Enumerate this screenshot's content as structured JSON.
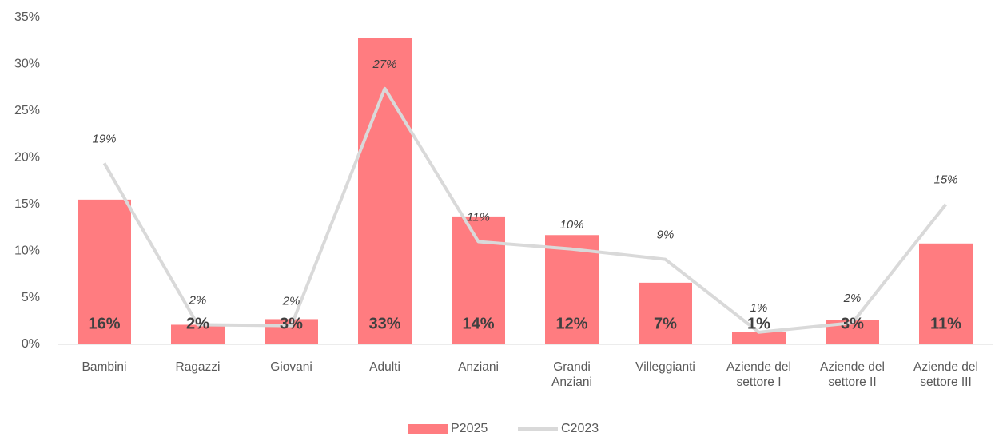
{
  "chart_data": {
    "type": "bar_line",
    "categories": [
      "Bambini",
      "Ragazzi",
      "Giovani",
      "Adulti",
      "Anziani",
      "Grandi Anziani",
      "Villeggianti",
      "Aziende del settore I",
      "Aziende del settore II",
      "Aziende del settore III"
    ],
    "series": [
      {
        "name": "P2025",
        "type": "bar",
        "color": "#ff7c80",
        "values": [
          15.5,
          2.1,
          2.7,
          32.8,
          13.7,
          11.7,
          6.6,
          1.3,
          2.6,
          10.8
        ],
        "value_labels": [
          "16%",
          "2%",
          "3%",
          "33%",
          "14%",
          "12%",
          "7%",
          "1%",
          "3%",
          "11%"
        ]
      },
      {
        "name": "C2023",
        "type": "line",
        "color": "#d9d9d9",
        "values": [
          19.4,
          2.1,
          2.0,
          27.4,
          11.0,
          10.2,
          9.1,
          1.3,
          2.3,
          15.0
        ],
        "value_labels": [
          "19%",
          "2%",
          "2%",
          "27%",
          "11%",
          "10%",
          "9%",
          "1%",
          "2%",
          "15%"
        ]
      }
    ],
    "ylim": [
      0,
      35
    ],
    "yticks": [
      {
        "value": 0,
        "label": "0%"
      },
      {
        "value": 5,
        "label": "5%"
      },
      {
        "value": 10,
        "label": "10%"
      },
      {
        "value": 15,
        "label": "15%"
      },
      {
        "value": 20,
        "label": "20%"
      },
      {
        "value": 25,
        "label": "25%"
      },
      {
        "value": 30,
        "label": "30%"
      },
      {
        "value": 35,
        "label": "35%"
      }
    ],
    "grid": false,
    "legend": "bottom"
  }
}
